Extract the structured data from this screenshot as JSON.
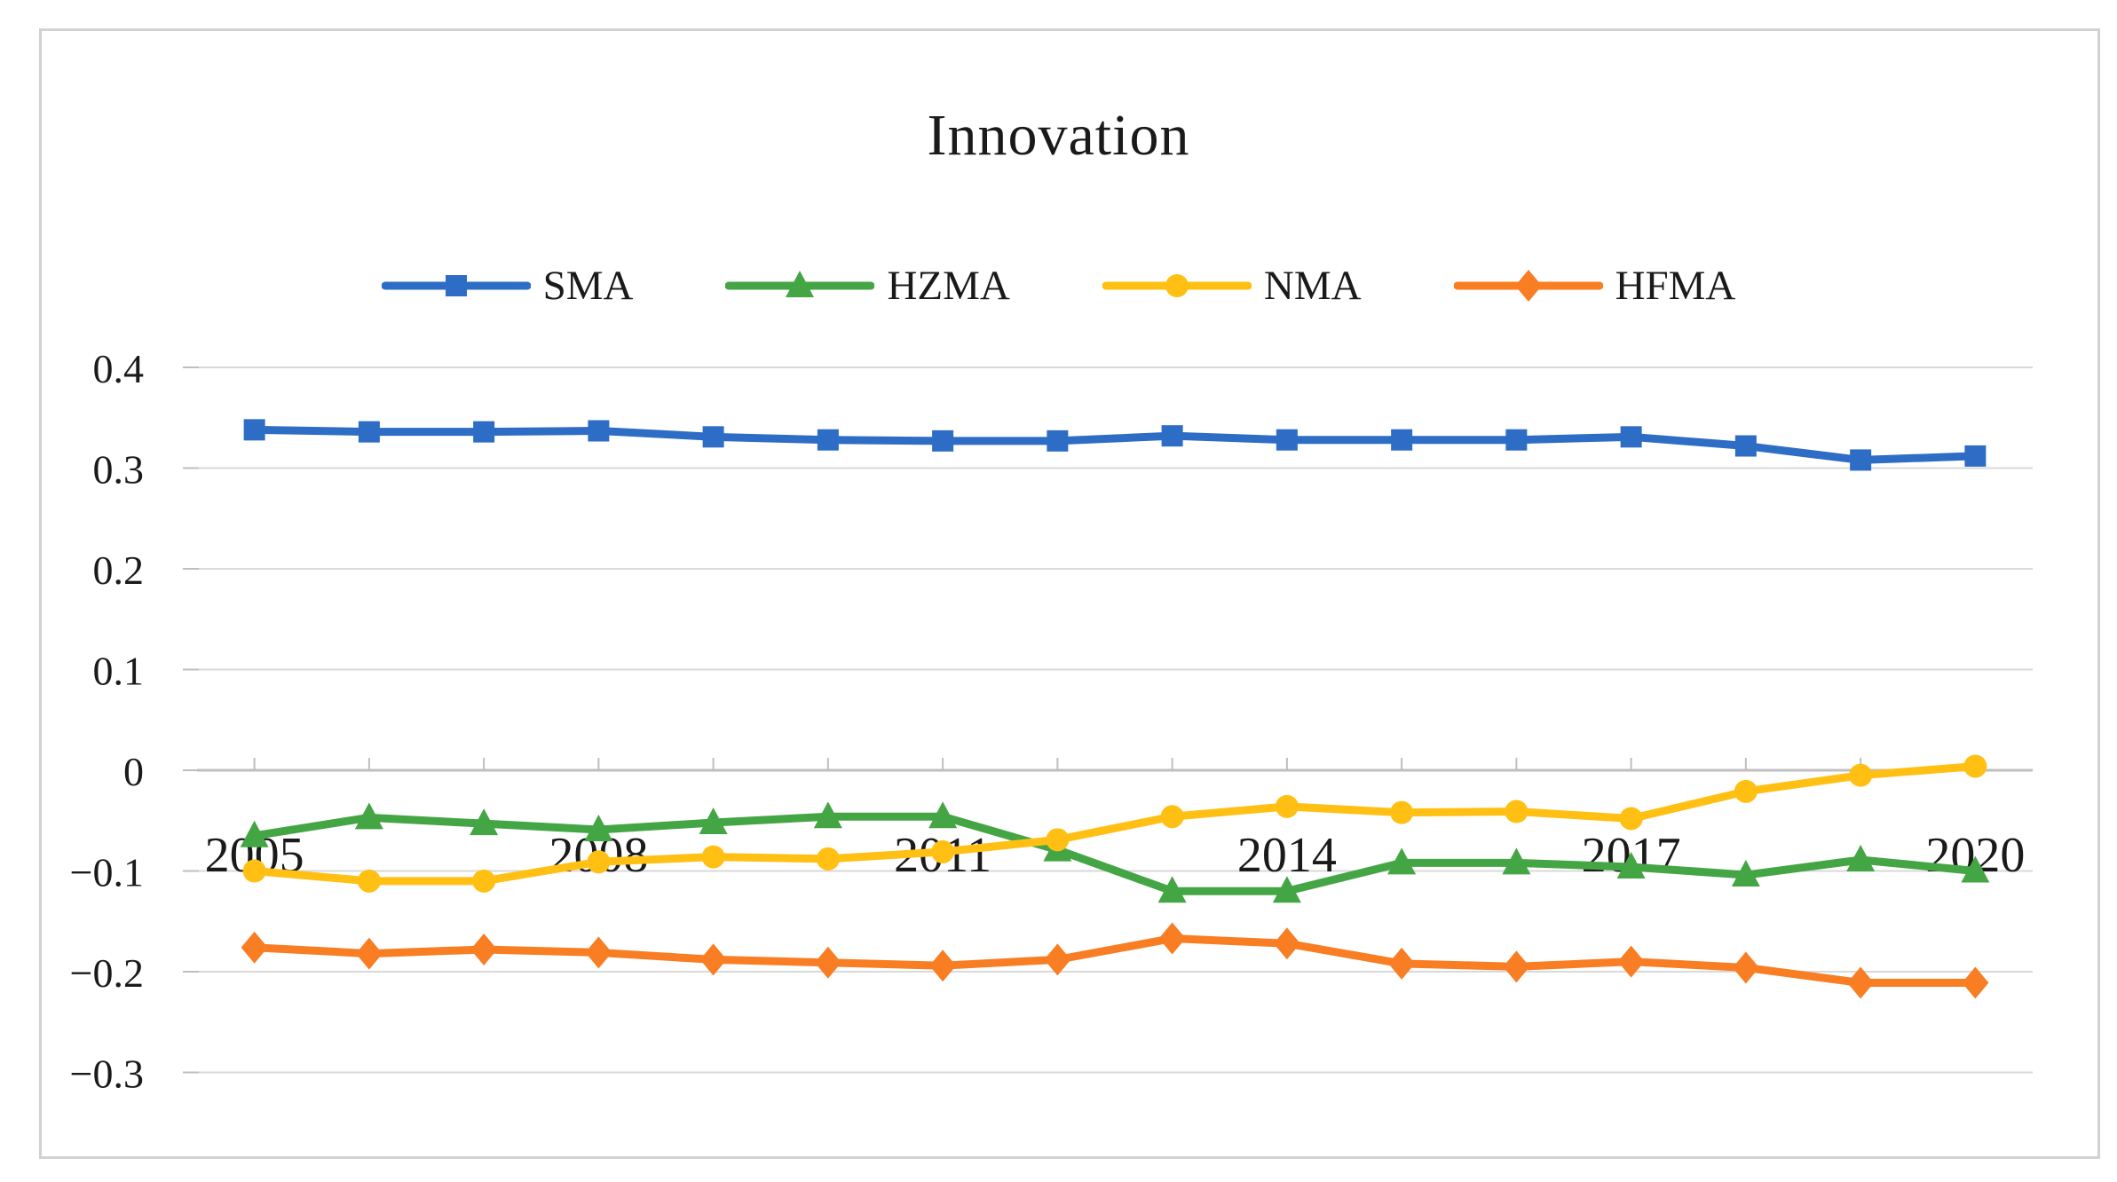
{
  "chart": {
    "title": "Innovation",
    "grid_color": "#d9d9d9",
    "axis_color": "#bfbfbf",
    "text_color": "#1a1a1a",
    "border_color": "#d2d2d2"
  },
  "chart_data": {
    "type": "line",
    "title": "Innovation",
    "xlabel": "",
    "ylabel": "",
    "grid": true,
    "legend_position": "top",
    "ylim": [
      -0.35,
      0.45
    ],
    "categories": [
      "2005",
      "2006",
      "2007",
      "2008",
      "2009",
      "2010",
      "2011",
      "2012",
      "2013",
      "2014",
      "2015",
      "2016",
      "2017",
      "2018",
      "2019",
      "2020"
    ],
    "x_axis": {
      "shown_tick_labels": [
        {
          "index": 0,
          "label": "2005"
        },
        {
          "index": 3,
          "label": "2008"
        },
        {
          "index": 6,
          "label": "2011"
        },
        {
          "index": 9,
          "label": "2014"
        },
        {
          "index": 12,
          "label": "2017"
        },
        {
          "index": 15,
          "label": "2020"
        }
      ]
    },
    "y_axis": {
      "ticks": [
        {
          "value": 0.4,
          "label": "0.4"
        },
        {
          "value": 0.3,
          "label": "0.3"
        },
        {
          "value": 0.2,
          "label": "0.2"
        },
        {
          "value": 0.1,
          "label": "0.1"
        },
        {
          "value": 0,
          "label": "0"
        },
        {
          "value": -0.1,
          "label": "−0.1"
        },
        {
          "value": -0.2,
          "label": "−0.2"
        },
        {
          "value": -0.3,
          "label": "−0.3"
        }
      ]
    },
    "series": [
      {
        "name": "SMA",
        "color": "#2e6dc5",
        "marker": "square",
        "values": [
          0.338,
          0.336,
          0.336,
          0.337,
          0.331,
          0.328,
          0.327,
          0.327,
          0.332,
          0.328,
          0.328,
          0.328,
          0.331,
          0.322,
          0.308,
          0.312
        ]
      },
      {
        "name": "HZMA",
        "color": "#44a544",
        "marker": "triangle",
        "values": [
          -0.065,
          -0.047,
          -0.053,
          -0.059,
          -0.052,
          -0.046,
          -0.046,
          -0.079,
          -0.12,
          -0.12,
          -0.092,
          -0.092,
          -0.096,
          -0.104,
          -0.089,
          -0.1
        ]
      },
      {
        "name": "NMA",
        "color": "#ffc013",
        "marker": "circle",
        "values": [
          -0.1,
          -0.11,
          -0.11,
          -0.091,
          -0.086,
          -0.088,
          -0.081,
          -0.069,
          -0.046,
          -0.036,
          -0.042,
          -0.041,
          -0.048,
          -0.021,
          -0.005,
          0.004
        ]
      },
      {
        "name": "HFMA",
        "color": "#f87d23",
        "marker": "diamond",
        "values": [
          -0.176,
          -0.182,
          -0.178,
          -0.181,
          -0.188,
          -0.191,
          -0.194,
          -0.188,
          -0.167,
          -0.172,
          -0.192,
          -0.195,
          -0.19,
          -0.196,
          -0.211,
          -0.211
        ]
      }
    ]
  }
}
